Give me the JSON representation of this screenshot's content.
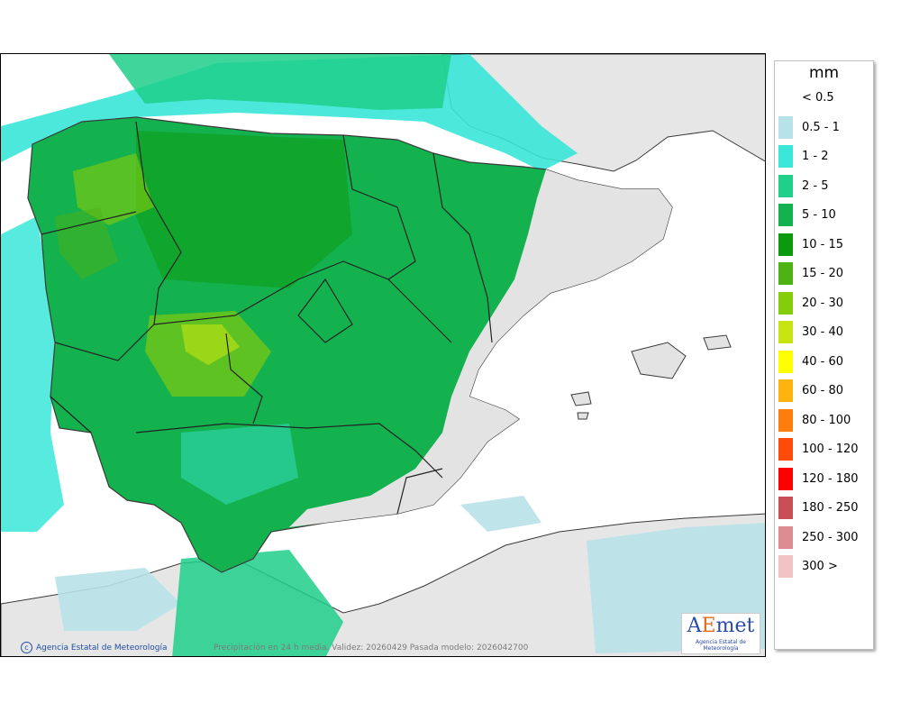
{
  "legend": {
    "unit": "mm",
    "items": [
      {
        "label": "< 0.5",
        "color": "#ffffff"
      },
      {
        "label": "0.5 - 1",
        "color": "#b8e2e9"
      },
      {
        "label": "1 - 2",
        "color": "#39e6d8"
      },
      {
        "label": "2 - 5",
        "color": "#1fcf8a"
      },
      {
        "label": "5 - 10",
        "color": "#14b14f"
      },
      {
        "label": "10 - 15",
        "color": "#0c9a0c"
      },
      {
        "label": "15 - 20",
        "color": "#4db213"
      },
      {
        "label": "20 - 30",
        "color": "#85cc0a"
      },
      {
        "label": "30 - 40",
        "color": "#c7e312"
      },
      {
        "label": "40 - 60",
        "color": "#ffff00"
      },
      {
        "label": "60 - 80",
        "color": "#ffb30f"
      },
      {
        "label": "80 - 100",
        "color": "#ff7d0c"
      },
      {
        "label": "100 - 120",
        "color": "#ff4a0a"
      },
      {
        "label": "120 - 180",
        "color": "#ff0000"
      },
      {
        "label": "180 - 250",
        "color": "#c94f56"
      },
      {
        "label": "250 - 300",
        "color": "#dd8c90"
      },
      {
        "label": "300 >",
        "color": "#f2c3c3"
      }
    ]
  },
  "credits": {
    "agency": "Agencia Estatal de Meteorología",
    "info": "Precipitación en 24 h media. Validez: 20260429 Pasada modelo: 2026042700"
  },
  "logo": {
    "mark_a": "A",
    "mark_e": "E",
    "mark_rest": "met",
    "subtitle": "Agencia Estatal de Meteorología"
  },
  "map_colors": {
    "sea": "#ffffff",
    "land_dry": "#e3e3e3",
    "coast": "#3a3a3a"
  }
}
